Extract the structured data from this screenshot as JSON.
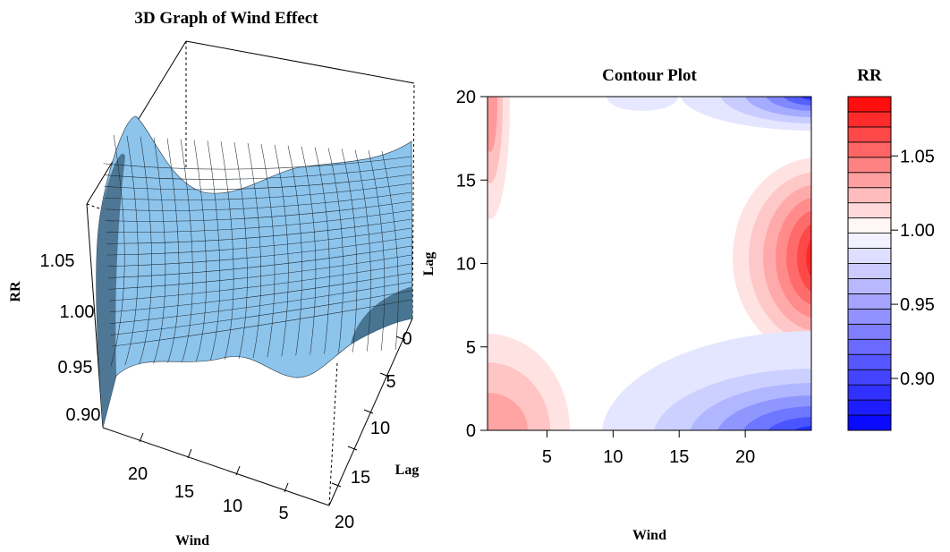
{
  "chart_data": [
    {
      "type": "surface",
      "title": "3D Graph of Wind Effect",
      "xlabel": "Wind",
      "ylabel": "Lag",
      "zlabel": "RR",
      "wind_ticks": [
        "5",
        "10",
        "15",
        "20"
      ],
      "lag_ticks": [
        "0",
        "5",
        "10",
        "15",
        "20"
      ],
      "rr_ticks": [
        "0.90",
        "0.95",
        "1.00",
        "1.05"
      ],
      "surface_color": "#87bde6"
    },
    {
      "type": "heatmap",
      "title": "Contour Plot",
      "xlabel": "Wind",
      "ylabel": "Lag",
      "x_ticks": [
        "5",
        "10",
        "15",
        "20"
      ],
      "y_ticks": [
        "0",
        "5",
        "10",
        "15",
        "20"
      ],
      "xlim": [
        0.5,
        25
      ],
      "ylim": [
        0,
        20
      ],
      "legend": {
        "title": "RR",
        "tick_labels": [
          "0.90",
          "0.95",
          "1.00",
          "1.05"
        ],
        "tick_values": [
          0.9,
          0.95,
          1.0,
          1.05
        ],
        "range": [
          0.865,
          1.09
        ],
        "color_low": "#0000ff",
        "color_mid": "#ffffff",
        "color_high": "#ff0000"
      }
    }
  ]
}
